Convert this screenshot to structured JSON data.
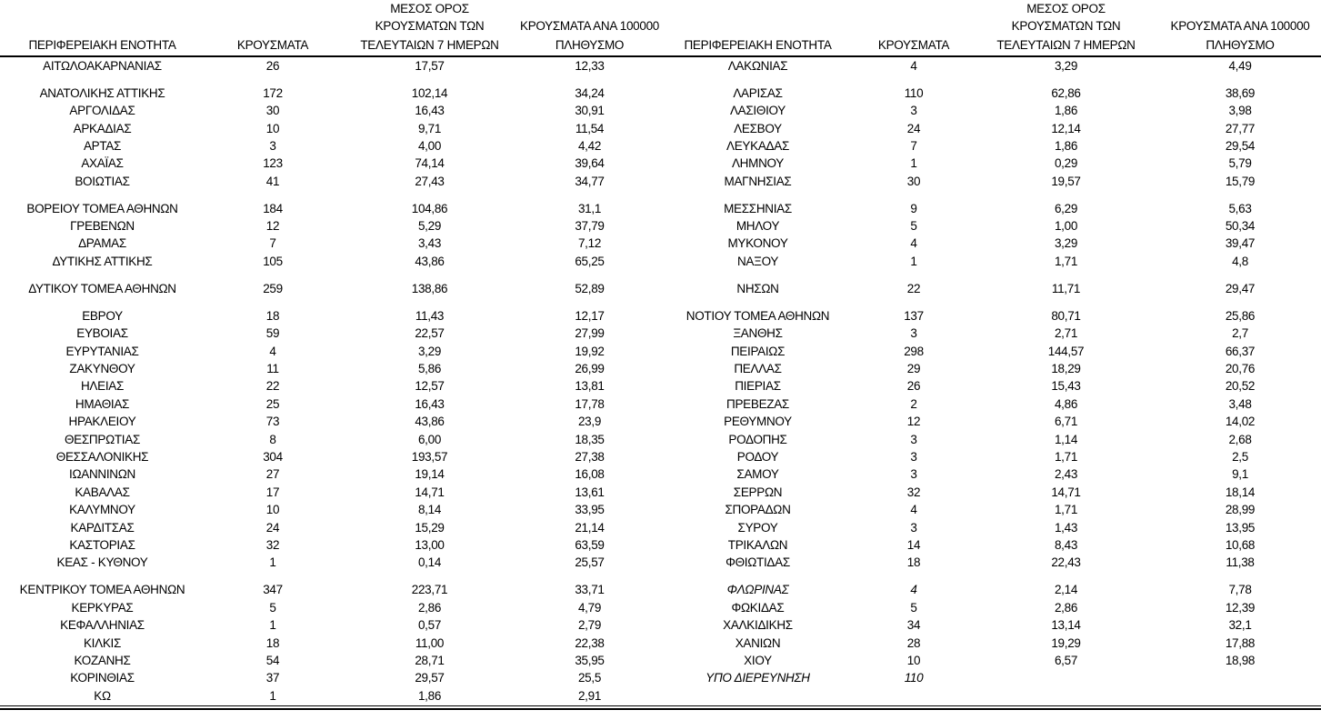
{
  "chart_data": {
    "type": "table",
    "title": "",
    "layout": "two side-by-side four-column panels sharing one row grid; single rule under header; double rule at bottom; blank spacer rows between alphabetical groups",
    "text_color": "#000000",
    "background_color": "#ffffff",
    "headers": {
      "region": "ΠΕΡΙΦΕΡΕΙΑΚΗ ΕΝΟΤΗΤΑ",
      "cases": "ΚΡΟΥΣΜΑΤΑ",
      "avg7_line1": "ΜΕΣΟΣ ΟΡΟΣ",
      "avg7_line2": "ΚΡΟΥΣΜΑΤΩΝ ΤΩΝ",
      "avg7_line3": "ΤΕΛΕΥΤΑΙΩΝ 7 ΗΜΕΡΩΝ",
      "per100k_line1": "ΚΡΟΥΣΜΑΤΑ ΑΝΑ 100000",
      "per100k_line2": "ΠΛΗΘΥΣΜΟ"
    },
    "columns_per_panel": [
      "ΠΕΡΙΦΕΡΕΙΑΚΗ ΕΝΟΤΗΤΑ",
      "ΚΡΟΥΣΜΑΤΑ",
      "ΜΕΣΟΣ ΟΡΟΣ ΚΡΟΥΣΜΑΤΩΝ ΤΩΝ ΤΕΛΕΥΤΑΙΩΝ 7 ΗΜΕΡΩΝ",
      "ΚΡΟΥΣΜΑΤΑ ΑΝΑ 100000 ΠΛΗΘΥΣΜΟ"
    ],
    "rows": [
      {
        "cells": [
          "ΑΙΤΩΛΟΑΚΑΡΝΑΝΙΑΣ",
          "26",
          "17,57",
          "12,33",
          "ΛΑΚΩΝΙΑΣ",
          "4",
          "3,29",
          "4,49"
        ]
      },
      {
        "gap_before": true,
        "cells": [
          "ΑΝΑΤΟΛΙΚΗΣ ΑΤΤΙΚΗΣ",
          "172",
          "102,14",
          "34,24",
          "ΛΑΡΙΣΑΣ",
          "110",
          "62,86",
          "38,69"
        ]
      },
      {
        "cells": [
          "ΑΡΓΟΛΙΔΑΣ",
          "30",
          "16,43",
          "30,91",
          "ΛΑΣΙΘΙΟΥ",
          "3",
          "1,86",
          "3,98"
        ]
      },
      {
        "cells": [
          "ΑΡΚΑΔΙΑΣ",
          "10",
          "9,71",
          "11,54",
          "ΛΕΣΒΟΥ",
          "24",
          "12,14",
          "27,77"
        ]
      },
      {
        "cells": [
          "ΑΡΤΑΣ",
          "3",
          "4,00",
          "4,42",
          "ΛΕΥΚΑΔΑΣ",
          "7",
          "1,86",
          "29,54"
        ]
      },
      {
        "cells": [
          "ΑΧΑΪΑΣ",
          "123",
          "74,14",
          "39,64",
          "ΛΗΜΝΟΥ",
          "1",
          "0,29",
          "5,79"
        ]
      },
      {
        "cells": [
          "ΒΟΙΩΤΙΑΣ",
          "41",
          "27,43",
          "34,77",
          "ΜΑΓΝΗΣΙΑΣ",
          "30",
          "19,57",
          "15,79"
        ]
      },
      {
        "gap_before": true,
        "cells": [
          "ΒΟΡΕΙΟΥ ΤΟΜΕΑ ΑΘΗΝΩΝ",
          "184",
          "104,86",
          "31,1",
          "ΜΕΣΣΗΝΙΑΣ",
          "9",
          "6,29",
          "5,63"
        ]
      },
      {
        "cells": [
          "ΓΡΕΒΕΝΩΝ",
          "12",
          "5,29",
          "37,79",
          "ΜΗΛΟΥ",
          "5",
          "1,00",
          "50,34"
        ]
      },
      {
        "cells": [
          "ΔΡΑΜΑΣ",
          "7",
          "3,43",
          "7,12",
          "ΜΥΚΟΝΟΥ",
          "4",
          "3,29",
          "39,47"
        ]
      },
      {
        "cells": [
          "ΔΥΤΙΚΗΣ ΑΤΤΙΚΗΣ",
          "105",
          "43,86",
          "65,25",
          "ΝΑΞΟΥ",
          "1",
          "1,71",
          "4,8"
        ]
      },
      {
        "gap_before": true,
        "cells": [
          "ΔΥΤΙΚΟΥ ΤΟΜΕΑ ΑΘΗΝΩΝ",
          "259",
          "138,86",
          "52,89",
          "ΝΗΣΩΝ",
          "22",
          "11,71",
          "29,47"
        ]
      },
      {
        "gap_before": true,
        "cells": [
          "ΕΒΡΟΥ",
          "18",
          "11,43",
          "12,17",
          "ΝΟΤΙΟΥ ΤΟΜΕΑ ΑΘΗΝΩΝ",
          "137",
          "80,71",
          "25,86"
        ]
      },
      {
        "cells": [
          "ΕΥΒΟΙΑΣ",
          "59",
          "22,57",
          "27,99",
          "ΞΑΝΘΗΣ",
          "3",
          "2,71",
          "2,7"
        ]
      },
      {
        "cells": [
          "ΕΥΡΥΤΑΝΙΑΣ",
          "4",
          "3,29",
          "19,92",
          "ΠΕΙΡΑΙΩΣ",
          "298",
          "144,57",
          "66,37"
        ]
      },
      {
        "cells": [
          "ΖΑΚΥΝΘΟΥ",
          "11",
          "5,86",
          "26,99",
          "ΠΕΛΛΑΣ",
          "29",
          "18,29",
          "20,76"
        ]
      },
      {
        "cells": [
          "ΗΛΕΙΑΣ",
          "22",
          "12,57",
          "13,81",
          "ΠΙΕΡΙΑΣ",
          "26",
          "15,43",
          "20,52"
        ]
      },
      {
        "cells": [
          "ΗΜΑΘΙΑΣ",
          "25",
          "16,43",
          "17,78",
          "ΠΡΕΒΕΖΑΣ",
          "2",
          "4,86",
          "3,48"
        ]
      },
      {
        "cells": [
          "ΗΡΑΚΛΕΙΟΥ",
          "73",
          "43,86",
          "23,9",
          "ΡΕΘΥΜΝΟΥ",
          "12",
          "6,71",
          "14,02"
        ]
      },
      {
        "cells": [
          "ΘΕΣΠΡΩΤΙΑΣ",
          "8",
          "6,00",
          "18,35",
          "ΡΟΔΟΠΗΣ",
          "3",
          "1,14",
          "2,68"
        ]
      },
      {
        "cells": [
          "ΘΕΣΣΑΛΟΝΙΚΗΣ",
          "304",
          "193,57",
          "27,38",
          "ΡΟΔΟΥ",
          "3",
          "1,71",
          "2,5"
        ]
      },
      {
        "cells": [
          "ΙΩΑΝΝΙΝΩΝ",
          "27",
          "19,14",
          "16,08",
          "ΣΑΜΟΥ",
          "3",
          "2,43",
          "9,1"
        ]
      },
      {
        "cells": [
          "ΚΑΒΑΛΑΣ",
          "17",
          "14,71",
          "13,61",
          "ΣΕΡΡΩΝ",
          "32",
          "14,71",
          "18,14"
        ]
      },
      {
        "cells": [
          "ΚΑΛΥΜΝΟΥ",
          "10",
          "8,14",
          "33,95",
          "ΣΠΟΡΑΔΩΝ",
          "4",
          "1,71",
          "28,99"
        ]
      },
      {
        "cells": [
          "ΚΑΡΔΙΤΣΑΣ",
          "24",
          "15,29",
          "21,14",
          "ΣΥΡΟΥ",
          "3",
          "1,43",
          "13,95"
        ]
      },
      {
        "cells": [
          "ΚΑΣΤΟΡΙΑΣ",
          "32",
          "13,00",
          "63,59",
          "ΤΡΙΚΑΛΩΝ",
          "14",
          "8,43",
          "10,68"
        ]
      },
      {
        "cells": [
          "ΚΕΑΣ - ΚΥΘΝΟΥ",
          "1",
          "0,14",
          "25,57",
          "ΦΘΙΩΤΙΔΑΣ",
          "18",
          "22,43",
          "11,38"
        ]
      },
      {
        "gap_before": true,
        "italic_cells": [
          4,
          5
        ],
        "cells": [
          "ΚΕΝΤΡΙΚΟΥ ΤΟΜΕΑ ΑΘΗΝΩΝ",
          "347",
          "223,71",
          "33,71",
          "ΦΛΩΡΙΝΑΣ",
          "4",
          "2,14",
          "7,78"
        ]
      },
      {
        "cells": [
          "ΚΕΡΚΥΡΑΣ",
          "5",
          "2,86",
          "4,79",
          "ΦΩΚΙΔΑΣ",
          "5",
          "2,86",
          "12,39"
        ]
      },
      {
        "cells": [
          "ΚΕΦΑΛΛΗΝΙΑΣ",
          "1",
          "0,57",
          "2,79",
          "ΧΑΛΚΙΔΙΚΗΣ",
          "34",
          "13,14",
          "32,1"
        ]
      },
      {
        "cells": [
          "ΚΙΛΚΙΣ",
          "18",
          "11,00",
          "22,38",
          "ΧΑΝΙΩΝ",
          "28",
          "19,29",
          "17,88"
        ]
      },
      {
        "cells": [
          "ΚΟΖΑΝΗΣ",
          "54",
          "28,71",
          "35,95",
          "ΧΙΟΥ",
          "10",
          "6,57",
          "18,98"
        ]
      },
      {
        "italic_cells": [
          4,
          5
        ],
        "cells": [
          "ΚΟΡΙΝΘΙΑΣ",
          "37",
          "29,57",
          "25,5",
          "ΥΠΟ ΔΙΕΡΕΥΝΗΣΗ",
          "110",
          "",
          ""
        ]
      },
      {
        "cells": [
          "ΚΩ",
          "1",
          "1,86",
          "2,91",
          "",
          "",
          "",
          ""
        ]
      }
    ]
  }
}
